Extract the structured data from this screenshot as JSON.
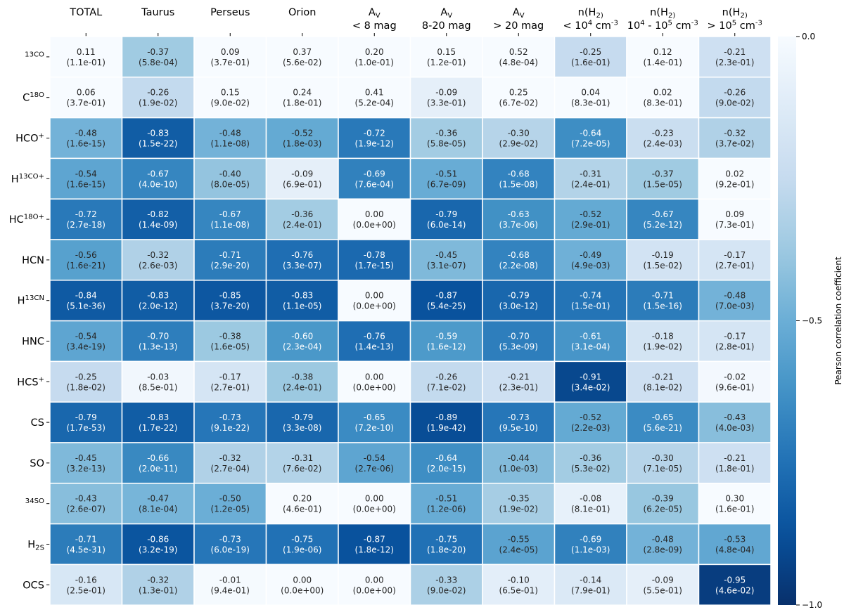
{
  "chart_data": {
    "type": "heatmap",
    "columns": [
      {
        "lines": [
          "TOTAL"
        ]
      },
      {
        "lines": [
          "Taurus"
        ]
      },
      {
        "lines": [
          "Perseus"
        ]
      },
      {
        "lines": [
          "Orion"
        ]
      },
      {
        "lines": [
          "A_V",
          "< 8 mag"
        ]
      },
      {
        "lines": [
          "A_V",
          "8-20 mag"
        ]
      },
      {
        "lines": [
          "A_V",
          "> 20 mag"
        ]
      },
      {
        "lines": [
          "n(H_2)",
          "< 10^4 cm^-3"
        ]
      },
      {
        "lines": [
          "n(H_2)",
          "10^4 - 10^5 cm^-3"
        ]
      },
      {
        "lines": [
          "n(H_2)",
          "> 10^5 cm^-3"
        ]
      }
    ],
    "rows": [
      "^13CO",
      "C^18O",
      "HCO^+",
      "H^13CO^+",
      "HC^18O^+",
      "HCN",
      "H^13CN",
      "HNC",
      "HCS^+",
      "CS",
      "SO",
      "^34SO",
      "H_2S",
      "OCS"
    ],
    "values": [
      [
        0.11,
        -0.37,
        0.09,
        0.37,
        0.2,
        0.15,
        0.52,
        -0.25,
        0.12,
        -0.21
      ],
      [
        0.06,
        -0.26,
        0.15,
        0.24,
        0.41,
        -0.09,
        0.25,
        0.04,
        0.02,
        -0.26
      ],
      [
        -0.48,
        -0.83,
        -0.48,
        -0.52,
        -0.72,
        -0.36,
        -0.3,
        -0.64,
        -0.23,
        -0.32
      ],
      [
        -0.54,
        -0.67,
        -0.4,
        -0.09,
        -0.69,
        -0.51,
        -0.68,
        -0.31,
        -0.37,
        0.02
      ],
      [
        -0.72,
        -0.82,
        -0.67,
        -0.36,
        0.0,
        -0.79,
        -0.63,
        -0.52,
        -0.67,
        0.09
      ],
      [
        -0.56,
        -0.32,
        -0.71,
        -0.76,
        -0.78,
        -0.45,
        -0.68,
        -0.49,
        -0.19,
        -0.17
      ],
      [
        -0.84,
        -0.83,
        -0.85,
        -0.83,
        0.0,
        -0.87,
        -0.79,
        -0.74,
        -0.71,
        -0.48
      ],
      [
        -0.54,
        -0.7,
        -0.38,
        -0.6,
        -0.76,
        -0.59,
        -0.7,
        -0.61,
        -0.18,
        -0.17
      ],
      [
        -0.25,
        -0.03,
        -0.17,
        -0.38,
        0.0,
        -0.26,
        -0.21,
        -0.91,
        -0.21,
        -0.02
      ],
      [
        -0.79,
        -0.83,
        -0.73,
        -0.79,
        -0.65,
        -0.89,
        -0.73,
        -0.52,
        -0.65,
        -0.43
      ],
      [
        -0.45,
        -0.66,
        -0.32,
        -0.31,
        -0.54,
        -0.64,
        -0.44,
        -0.36,
        -0.3,
        -0.21
      ],
      [
        -0.43,
        -0.47,
        -0.5,
        0.2,
        0.0,
        -0.51,
        -0.35,
        -0.08,
        -0.39,
        0.3
      ],
      [
        -0.71,
        -0.86,
        -0.73,
        -0.75,
        -0.87,
        -0.75,
        -0.55,
        -0.69,
        -0.48,
        -0.53
      ],
      [
        -0.16,
        -0.32,
        -0.01,
        0.0,
        0.0,
        -0.33,
        -0.1,
        -0.14,
        -0.09,
        -0.95
      ]
    ],
    "pvalues": [
      [
        "1.1e-01",
        "5.8e-04",
        "3.7e-01",
        "5.6e-02",
        "1.0e-01",
        "1.2e-01",
        "4.8e-04",
        "1.6e-01",
        "1.4e-01",
        "2.3e-01"
      ],
      [
        "3.7e-01",
        "1.9e-02",
        "9.0e-02",
        "1.8e-01",
        "5.2e-04",
        "3.3e-01",
        "6.7e-02",
        "8.3e-01",
        "8.3e-01",
        "9.0e-02"
      ],
      [
        "1.6e-15",
        "1.5e-22",
        "1.1e-08",
        "1.8e-03",
        "1.9e-12",
        "5.8e-05",
        "2.9e-02",
        "7.2e-05",
        "2.4e-03",
        "3.7e-02"
      ],
      [
        "1.6e-15",
        "4.0e-10",
        "8.0e-05",
        "6.9e-01",
        "7.6e-04",
        "6.7e-09",
        "1.5e-08",
        "2.4e-01",
        "1.5e-05",
        "9.2e-01"
      ],
      [
        "2.7e-18",
        "1.4e-09",
        "1.1e-08",
        "2.4e-01",
        "0.0e+00",
        "6.0e-14",
        "3.7e-06",
        "2.9e-01",
        "5.2e-12",
        "7.3e-01"
      ],
      [
        "1.6e-21",
        "2.6e-03",
        "2.9e-20",
        "3.3e-07",
        "1.7e-15",
        "3.1e-07",
        "2.2e-08",
        "4.9e-03",
        "1.5e-02",
        "2.7e-01"
      ],
      [
        "5.1e-36",
        "2.0e-12",
        "3.7e-20",
        "1.1e-05",
        "0.0e+00",
        "5.4e-25",
        "3.0e-12",
        "1.5e-01",
        "1.5e-16",
        "7.0e-03"
      ],
      [
        "3.4e-19",
        "1.3e-13",
        "1.6e-05",
        "2.3e-04",
        "1.4e-13",
        "1.6e-12",
        "5.3e-09",
        "3.1e-04",
        "1.9e-02",
        "2.8e-01"
      ],
      [
        "1.8e-02",
        "8.5e-01",
        "2.7e-01",
        "2.4e-01",
        "0.0e+00",
        "7.1e-02",
        "2.3e-01",
        "3.4e-02",
        "8.1e-02",
        "9.6e-01"
      ],
      [
        "1.7e-53",
        "1.7e-22",
        "9.1e-22",
        "3.3e-08",
        "7.2e-10",
        "1.9e-42",
        "9.5e-10",
        "2.2e-03",
        "5.6e-21",
        "4.0e-03"
      ],
      [
        "3.2e-13",
        "2.0e-11",
        "2.7e-04",
        "7.6e-02",
        "2.7e-06",
        "2.0e-15",
        "1.0e-03",
        "5.3e-02",
        "7.1e-05",
        "1.8e-01"
      ],
      [
        "2.6e-07",
        "8.1e-04",
        "1.2e-05",
        "4.6e-01",
        "0.0e+00",
        "1.2e-06",
        "1.9e-02",
        "8.1e-01",
        "6.2e-05",
        "1.6e-01"
      ],
      [
        "4.5e-31",
        "3.2e-19",
        "6.0e-19",
        "1.9e-06",
        "1.8e-12",
        "1.8e-20",
        "2.4e-05",
        "1.1e-03",
        "2.8e-09",
        "4.8e-04"
      ],
      [
        "2.5e-01",
        "1.3e-01",
        "9.4e-01",
        "0.0e+00",
        "0.0e+00",
        "9.0e-02",
        "6.5e-01",
        "7.9e-01",
        "5.5e-01",
        "4.6e-02"
      ]
    ],
    "colorbar": {
      "label": "Pearson correlation coefficient",
      "range": [
        -1.0,
        0.0
      ],
      "ticks": [
        0.0,
        -0.5,
        -1.0
      ],
      "tick_labels": [
        "0.0",
        "−0.5",
        "−1.0"
      ],
      "colormap": "Blues (reversed, clipped at 0)",
      "colors": [
        "#f7fbff",
        "#deebf7",
        "#c6dbef",
        "#9ecae1",
        "#6baed6",
        "#4292c6",
        "#2171b5",
        "#08519c",
        "#08306b"
      ]
    },
    "xlabel": "",
    "ylabel": "",
    "title": ""
  }
}
